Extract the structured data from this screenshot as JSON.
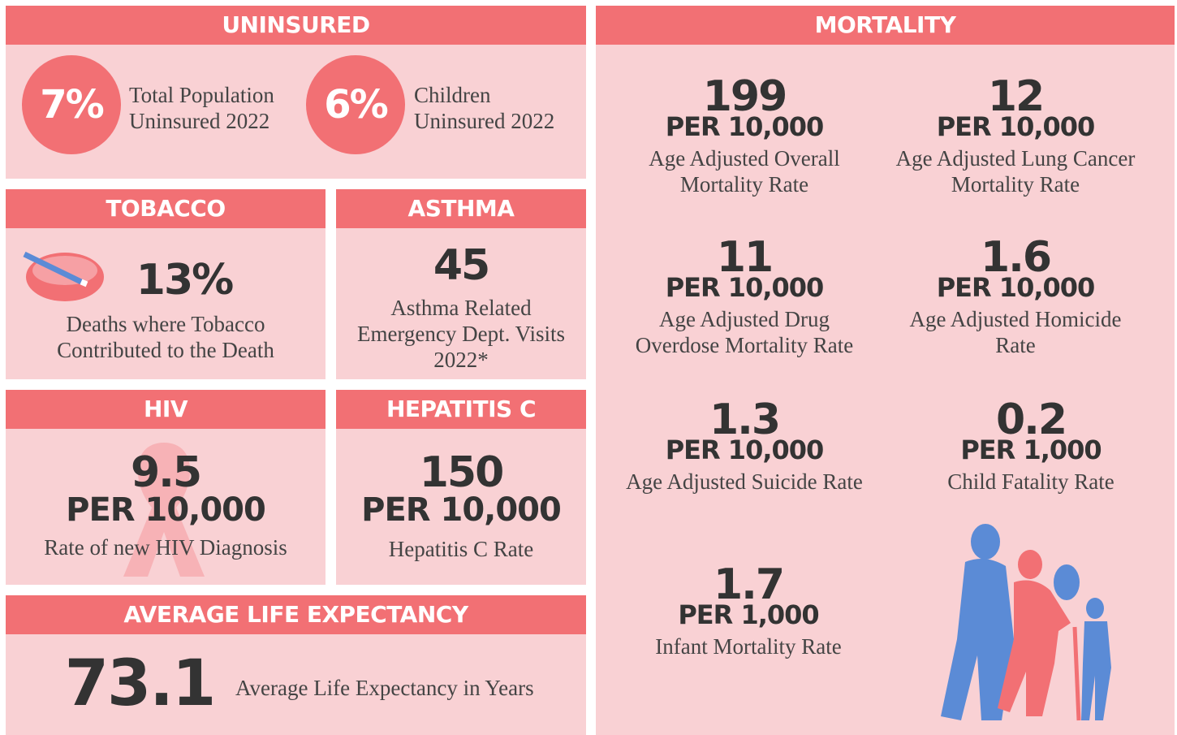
{
  "uninsured": {
    "title": "UNINSURED",
    "items": [
      {
        "value": "7%",
        "label": "Total Population Uninsured 2022"
      },
      {
        "value": "6%",
        "label": "Children Uninsured 2022"
      }
    ]
  },
  "tobacco": {
    "title": "TOBACCO",
    "value": "13%",
    "label": "Deaths where Tobacco Contributed to the Death"
  },
  "asthma": {
    "title": "ASTHMA",
    "value": "45",
    "label": "Asthma Related Emergency Dept. Visits 2022*"
  },
  "hiv": {
    "title": "HIV",
    "value": "9.5",
    "unit": "PER 10,000",
    "label": "Rate of new HIV Diagnosis"
  },
  "hepatitis_c": {
    "title": "HEPATITIS C",
    "value": "150",
    "unit": "PER 10,000",
    "label": "Hepatitis C Rate"
  },
  "life_expectancy": {
    "title": "AVERAGE LIFE EXPECTANCY",
    "value": "73.1",
    "label": "Average Life Expectancy in Years"
  },
  "mortality": {
    "title": "MORTALITY",
    "items": [
      {
        "value": "199",
        "unit": "PER 10,000",
        "label": "Age Adjusted Overall Mortality Rate"
      },
      {
        "value": "12",
        "unit": "PER 10,000",
        "label": "Age Adjusted Lung Cancer Mortality Rate"
      },
      {
        "value": "11",
        "unit": "PER 10,000",
        "label": "Age Adjusted Drug Overdose Mortality Rate"
      },
      {
        "value": "1.6",
        "unit": "PER 10,000",
        "label": "Age Adjusted Homicide Rate"
      },
      {
        "value": "1.3",
        "unit": "PER 10,000",
        "label": "Age Adjusted Suicide Rate"
      },
      {
        "value": "0.2",
        "unit": "PER 1,000",
        "label": "Child Fatality Rate"
      },
      {
        "value": "1.7",
        "unit": "PER 1,000",
        "label": "Infant Mortality Rate"
      }
    ]
  }
}
